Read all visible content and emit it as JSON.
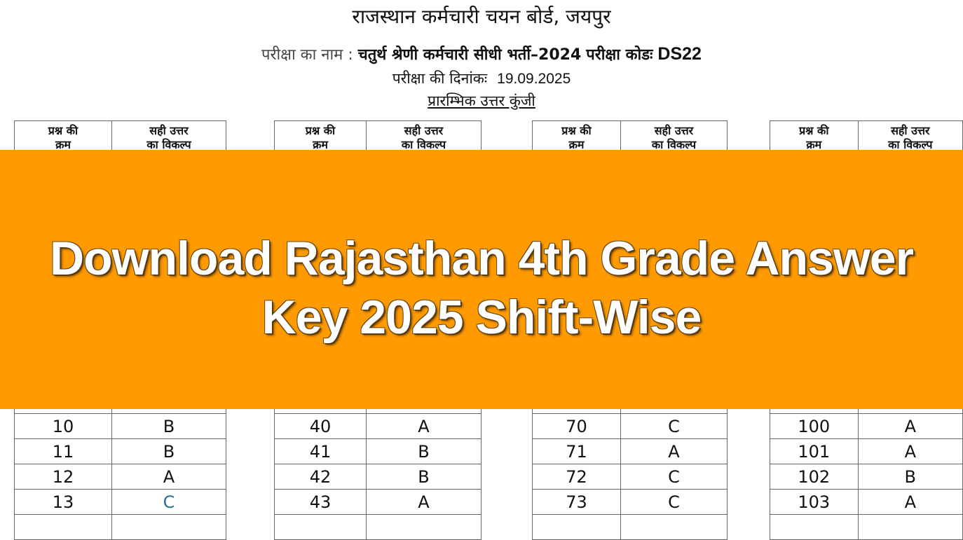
{
  "header": {
    "board": "राजस्थान कर्मचारी चयन बोर्ड, जयपुर",
    "exam_label": "परीक्षा का नाम :",
    "exam_name": "चतुर्थ श्रेणी कर्मचारी सीधी भर्ती–2024",
    "code_label": "परीक्षा कोडः",
    "code": "DS22",
    "date_label": "परीक्षा की दिनांकः",
    "date": "19.09.2025",
    "doc_title": "प्रारम्भिक उत्तर कुंजी"
  },
  "table_headers": {
    "q_line1": "प्रश्न की",
    "q_line2": "क्रम",
    "a_line1": "सही उत्तर",
    "a_line2": "का विकल्प"
  },
  "tables": [
    {
      "rows": [
        [
          "10",
          "B"
        ],
        [
          "11",
          "B"
        ],
        [
          "12",
          "A"
        ],
        [
          "13",
          "C"
        ]
      ]
    },
    {
      "rows": [
        [
          "40",
          "A"
        ],
        [
          "41",
          "B"
        ],
        [
          "42",
          "B"
        ],
        [
          "43",
          "A"
        ]
      ]
    },
    {
      "rows": [
        [
          "70",
          "C"
        ],
        [
          "71",
          "A"
        ],
        [
          "72",
          "C"
        ],
        [
          "73",
          "C"
        ]
      ]
    },
    {
      "rows": [
        [
          "100",
          "A"
        ],
        [
          "101",
          "A"
        ],
        [
          "102",
          "B"
        ],
        [
          "103",
          "A"
        ]
      ]
    }
  ],
  "banner": {
    "line1": "Download Rajasthan 4th Grade Answer",
    "line2": "Key 2025 Shift-Wise",
    "color": "#FF9A00"
  },
  "colors": {
    "highlight_answer": "#2a6f97"
  }
}
